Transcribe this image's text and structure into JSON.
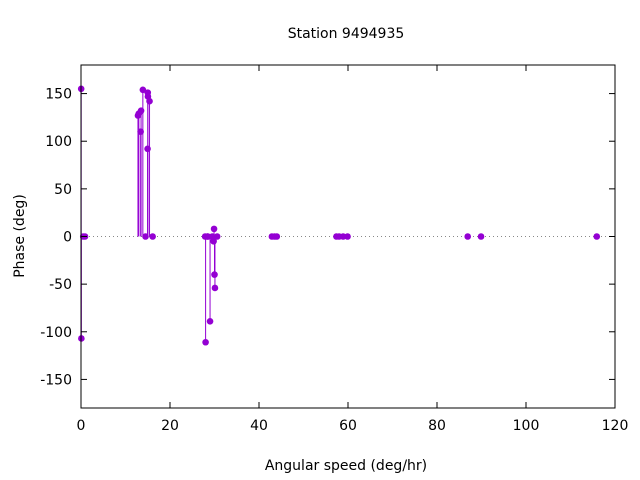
{
  "chart_data": {
    "type": "scatter",
    "style": "impulses-with-points",
    "title": "Station 9494935",
    "xlabel": "Angular speed (deg/hr)",
    "ylabel": "Phase (deg)",
    "xlim": [
      0,
      120
    ],
    "ylim": [
      -180,
      180
    ],
    "xticks": [
      0,
      20,
      40,
      60,
      80,
      100,
      120
    ],
    "yticks": [
      -150,
      -100,
      -50,
      0,
      50,
      100,
      150
    ],
    "zero_line": "dotted",
    "grid": false,
    "color": "#9400d3",
    "series": [
      {
        "x": [
          0.04,
          0.08,
          0.5,
          0.9,
          12.8,
          13.0,
          13.4,
          13.5,
          13.9,
          14.5,
          14.96,
          15.0,
          15.04,
          15.4,
          16.1,
          27.9,
          28.0,
          28.4,
          28.5,
          29.0,
          29.5,
          29.8,
          29.9,
          30.0,
          30.1,
          30.6,
          42.9,
          43.5,
          44.0,
          57.4,
          58.0,
          58.9,
          59.9,
          86.9,
          89.9,
          115.9
        ],
        "y": [
          155,
          -107,
          0,
          0,
          127,
          129,
          110,
          132,
          154,
          0,
          92,
          151,
          147,
          142,
          0,
          0,
          -111,
          0,
          0,
          -89,
          0,
          -5,
          8,
          -40,
          -54,
          0,
          0,
          0,
          0,
          0,
          0,
          0,
          0,
          0,
          0,
          0
        ]
      }
    ]
  }
}
